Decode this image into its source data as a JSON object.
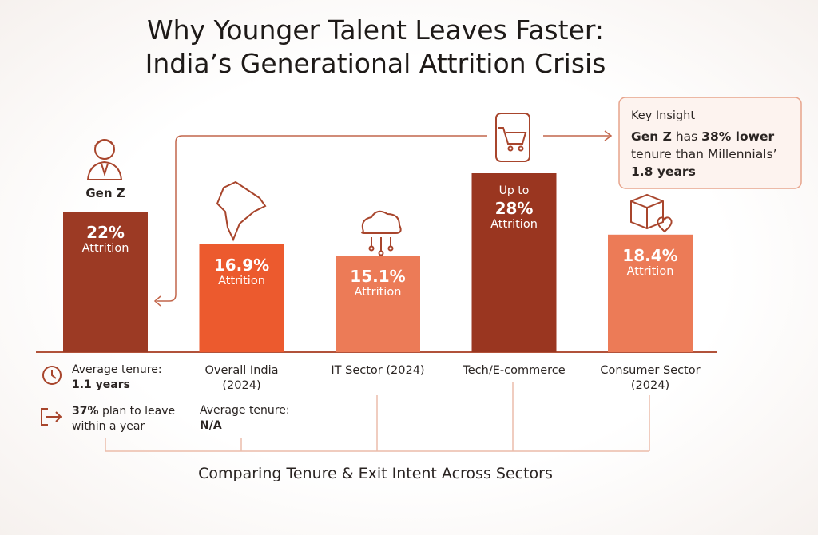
{
  "chart_data": {
    "type": "bar",
    "title": "Why Younger Talent Leaves Faster:",
    "subtitle": "India’s Generational Attrition Crisis",
    "categories": [
      "Gen Z",
      "Overall India (2024)",
      "IT Sector (2024)",
      "Tech/E-commerce",
      "Consumer Sector (2024)"
    ],
    "values": [
      22,
      16.9,
      15.1,
      28,
      18.4
    ],
    "value_labels": [
      "22%",
      "16.9%",
      "15.1%",
      "28%",
      "18.4%"
    ],
    "value_caption": "Attrition",
    "prefix_note": "Up to",
    "colors": [
      "#9c3a24",
      "#ec5a2e",
      "#ec7b57",
      "#9a3620",
      "#ec7b57"
    ],
    "insight": {
      "title": "Key Insight",
      "parts": [
        "Gen Z",
        " has ",
        "38% lower",
        " tenure than Millennials’ ",
        "1.8 years"
      ]
    },
    "notes": {
      "genz_tenure_label": "Average tenure:",
      "genz_tenure_value": "1.1 years",
      "genz_exit_value": "37%",
      "genz_exit_text": " plan to leave within a year",
      "india_tenure_label": "Average tenure:",
      "india_tenure_value": "N/A"
    },
    "footer": "Comparing Tenure & Exit Intent Across Sectors"
  }
}
